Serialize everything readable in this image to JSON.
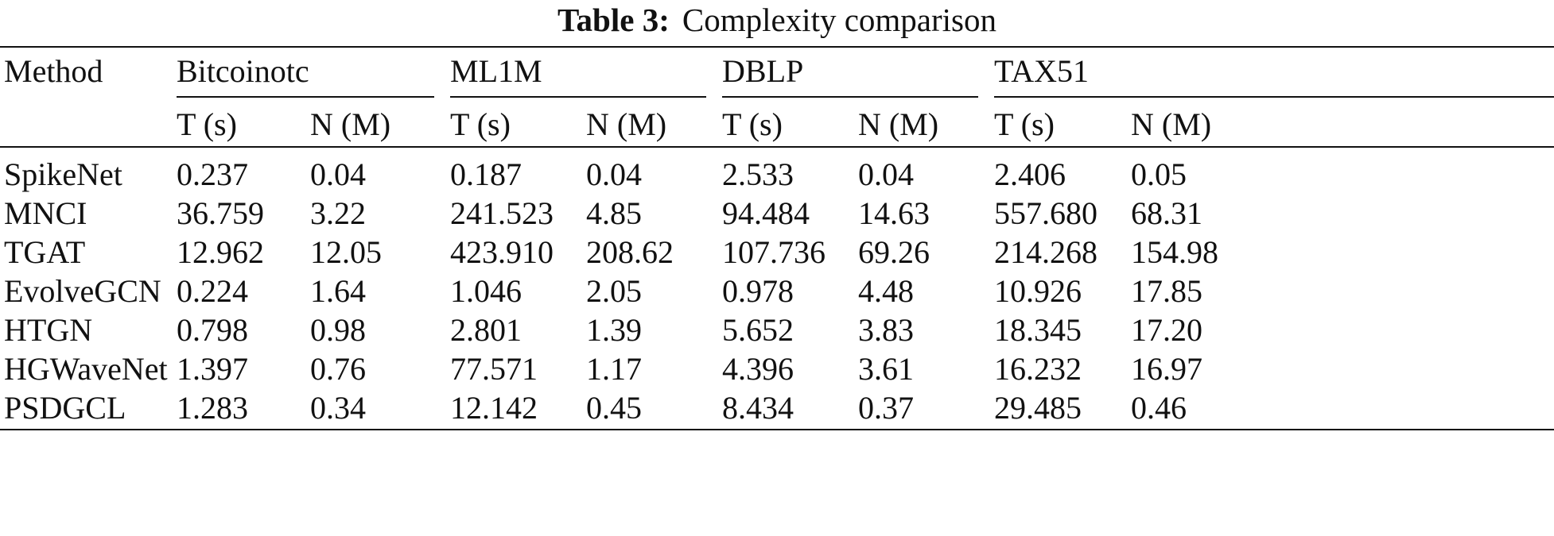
{
  "caption": {
    "label": "Table 3:",
    "text": "Complexity comparison"
  },
  "table": {
    "method_header": "Method",
    "datasets": [
      "Bitcoinotc",
      "ML1M",
      "DBLP",
      "TAX51"
    ],
    "sub_headers": [
      "T (s)",
      "N (M)",
      "T (s)",
      "N (M)",
      "T (s)",
      "N (M)",
      "T (s)",
      "N (M)"
    ],
    "rows": [
      {
        "method": "SpikeNet",
        "values": [
          "0.237",
          "0.04",
          "0.187",
          "0.04",
          "2.533",
          "0.04",
          "2.406",
          "0.05"
        ]
      },
      {
        "method": "MNCI",
        "values": [
          "36.759",
          "3.22",
          "241.523",
          "4.85",
          "94.484",
          "14.63",
          "557.680",
          "68.31"
        ]
      },
      {
        "method": "TGAT",
        "values": [
          "12.962",
          "12.05",
          "423.910",
          "208.62",
          "107.736",
          "69.26",
          "214.268",
          "154.98"
        ]
      },
      {
        "method": "EvolveGCN",
        "values": [
          "0.224",
          "1.64",
          "1.046",
          "2.05",
          "0.978",
          "4.48",
          "10.926",
          "17.85"
        ]
      },
      {
        "method": "HTGN",
        "values": [
          "0.798",
          "0.98",
          "2.801",
          "1.39",
          "5.652",
          "3.83",
          "18.345",
          "17.20"
        ]
      },
      {
        "method": "HGWaveNet",
        "values": [
          "1.397",
          "0.76",
          "77.571",
          "1.17",
          "4.396",
          "3.61",
          "16.232",
          "16.97"
        ]
      },
      {
        "method": "PSDGCL",
        "values": [
          "1.283",
          "0.34",
          "12.142",
          "0.45",
          "8.434",
          "0.37",
          "29.485",
          "0.46"
        ]
      }
    ]
  }
}
